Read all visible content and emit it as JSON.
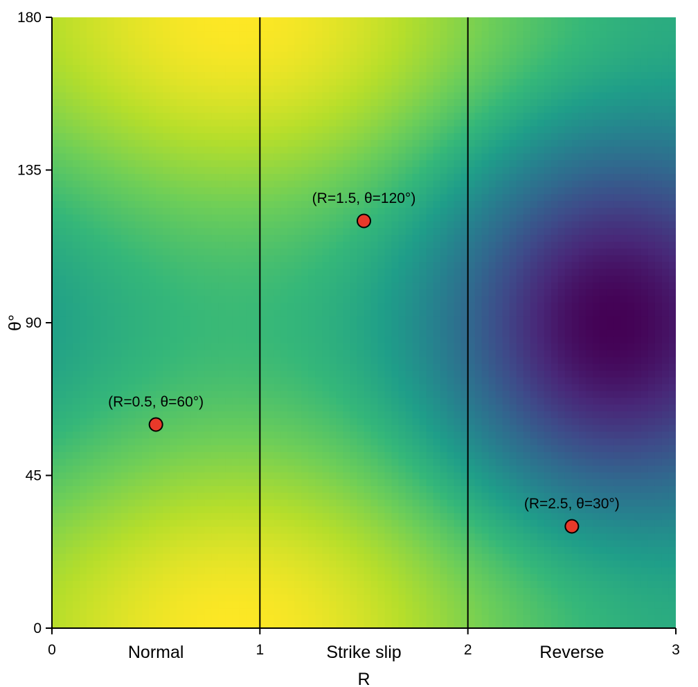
{
  "chart_data": {
    "type": "heatmap",
    "title": "",
    "xlabel": "R",
    "ylabel": "θ°",
    "xlim": [
      0,
      3
    ],
    "ylim": [
      0,
      180
    ],
    "x_ticks": [
      0,
      1,
      2,
      3
    ],
    "y_ticks": [
      0,
      45,
      90,
      135,
      180
    ],
    "x_tick_labels": [
      "0",
      "1",
      "2",
      "3"
    ],
    "y_tick_labels": [
      "0",
      "45",
      "90",
      "135",
      "180"
    ],
    "colormap": "viridis",
    "grid": false,
    "region_dividers": [
      1,
      2
    ],
    "regions": [
      {
        "label": "Normal",
        "x": 0.5
      },
      {
        "label": "Strike slip",
        "x": 1.5
      },
      {
        "label": "Reverse",
        "x": 2.5
      }
    ],
    "points": [
      {
        "R": 0.5,
        "theta": 60,
        "label": "(R=0.5, θ=60°)"
      },
      {
        "R": 1.5,
        "theta": 120,
        "label": "(R=1.5, θ=120°)"
      },
      {
        "R": 2.5,
        "theta": 30,
        "label": "(R=2.5, θ=30°)"
      }
    ],
    "point_color": "#e8392a"
  }
}
